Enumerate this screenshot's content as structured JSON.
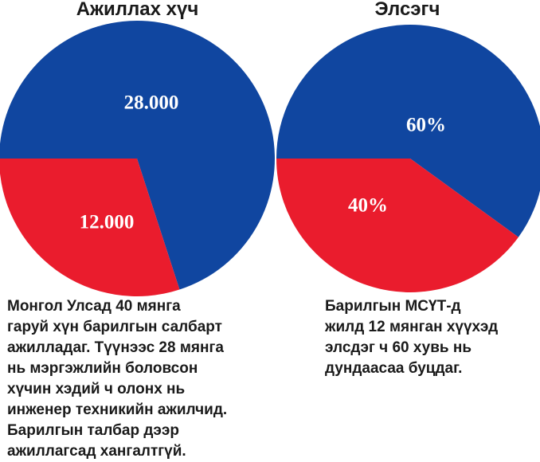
{
  "colors": {
    "blue": "#1046a0",
    "red": "#ea1c2d"
  },
  "chart_data": [
    {
      "type": "pie",
      "title": "Ажиллах хүч",
      "categories": [
        "28.000",
        "12.000"
      ],
      "values": [
        28000,
        12000
      ],
      "labels": [
        "28.000",
        "12.000"
      ],
      "slice_colors": [
        "blue",
        "red"
      ]
    },
    {
      "type": "pie",
      "title": "Элсэгч",
      "categories": [
        "60%",
        "40%"
      ],
      "values": [
        60,
        40
      ],
      "labels": [
        "60%",
        "40%"
      ],
      "slice_colors": [
        "blue",
        "red"
      ]
    }
  ],
  "captions": {
    "left": [
      "Монгол Улсад 40 мянга",
      "гаруй хүн барилгын салбарт",
      "ажилладаг. Түүнээс 28 мянга",
      "нь мэргэжлийн боловсон",
      "хүчин хэдий ч олонх нь",
      "инженер техникийн ажилчид.",
      "Барилгын талбар дээр",
      "ажиллагсад хангалтгүй."
    ],
    "right": [
      "Барилгын МСҮТ-д",
      "жилд 12 мянган хүүхэд",
      "элсдэг ч 60 хувь нь",
      "дундаасаа буцдаг."
    ]
  }
}
